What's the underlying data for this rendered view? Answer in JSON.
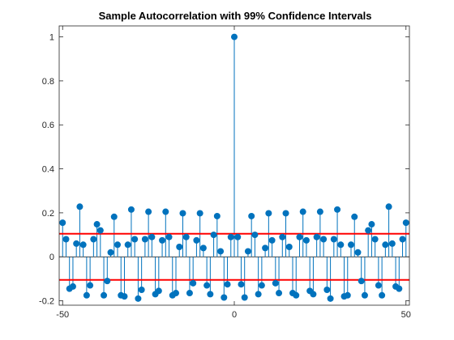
{
  "chart_data": {
    "type": "stem",
    "title": "Sample Autocorrelation with 99% Confidence Intervals",
    "xlabel": "",
    "ylabel": "",
    "xlim": [
      -51,
      51
    ],
    "ylim": [
      -0.22,
      1.05
    ],
    "x_ticks": [
      -50,
      0,
      50
    ],
    "x_tick_labels": [
      "-50",
      "0",
      "50"
    ],
    "y_ticks": [
      -0.2,
      0,
      0.2,
      0.4,
      0.6,
      0.8,
      1
    ],
    "y_tick_labels": [
      "-0.2",
      "0",
      "0.2",
      "0.4",
      "0.6",
      "0.8",
      "1"
    ],
    "grid": false,
    "stem_color": "#0072BD",
    "bound_color": "#FF0000",
    "confidence_bound": 0.105,
    "series": [
      {
        "lags": [
          -50,
          -49,
          -48,
          -47,
          -46,
          -45,
          -44,
          -43,
          -42,
          -41,
          -40,
          -39,
          -38,
          -37,
          -36,
          -35,
          -34,
          -33,
          -32,
          -31,
          -30,
          -29,
          -28,
          -27,
          -26,
          -25,
          -24,
          -23,
          -22,
          -21,
          -20,
          -19,
          -18,
          -17,
          -16,
          -15,
          -14,
          -13,
          -12,
          -11,
          -10,
          -9,
          -8,
          -7,
          -6,
          -5,
          -4,
          -3,
          -2,
          -1,
          0,
          1,
          2,
          3,
          4,
          5,
          6,
          7,
          8,
          9,
          10,
          11,
          12,
          13,
          14,
          15,
          16,
          17,
          18,
          19,
          20,
          21,
          22,
          23,
          24,
          25,
          26,
          27,
          28,
          29,
          30,
          31,
          32,
          33,
          34,
          35,
          36,
          37,
          38,
          39,
          40,
          41,
          42,
          43,
          44,
          45,
          46,
          47,
          48,
          49,
          50
        ],
        "values": [
          0.155,
          0.08,
          -0.145,
          -0.135,
          0.06,
          0.228,
          0.055,
          -0.175,
          -0.13,
          0.08,
          0.148,
          0.12,
          -0.175,
          -0.11,
          0.02,
          0.182,
          0.055,
          -0.175,
          -0.18,
          0.055,
          0.215,
          0.08,
          -0.19,
          -0.15,
          0.08,
          0.205,
          0.09,
          -0.17,
          -0.155,
          0.075,
          0.205,
          0.09,
          -0.175,
          -0.165,
          0.045,
          0.198,
          0.09,
          -0.165,
          -0.12,
          0.075,
          0.198,
          0.04,
          -0.13,
          -0.17,
          0.1,
          0.185,
          0.025,
          -0.185,
          -0.125,
          0.09,
          1.0,
          0.09,
          -0.125,
          -0.185,
          0.025,
          0.185,
          0.1,
          -0.17,
          -0.13,
          0.04,
          0.198,
          0.075,
          -0.12,
          -0.165,
          0.09,
          0.198,
          0.045,
          -0.165,
          -0.175,
          0.09,
          0.205,
          0.075,
          -0.155,
          -0.17,
          0.09,
          0.205,
          0.08,
          -0.15,
          -0.19,
          0.08,
          0.215,
          0.055,
          -0.18,
          -0.175,
          0.055,
          0.182,
          0.02,
          -0.11,
          -0.175,
          0.12,
          0.148,
          0.08,
          -0.13,
          -0.175,
          0.055,
          0.228,
          0.06,
          -0.135,
          -0.145,
          0.08,
          0.155
        ]
      }
    ]
  }
}
